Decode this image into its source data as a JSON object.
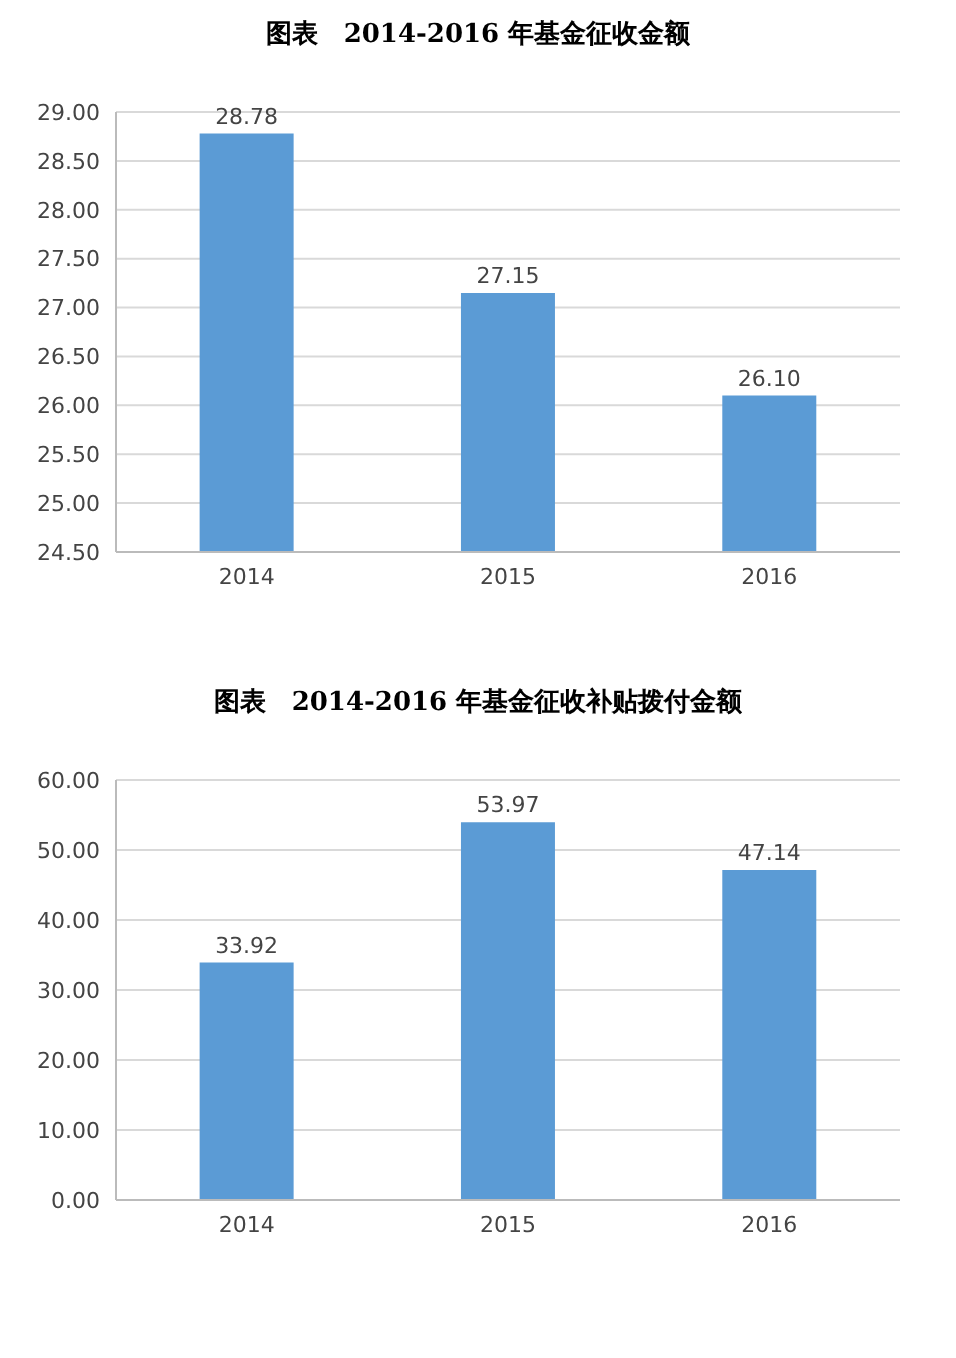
{
  "chart_data": [
    {
      "type": "bar",
      "title": "图表　2014-2016 年基金征收金额",
      "categories": [
        "2014",
        "2015",
        "2016"
      ],
      "values": [
        28.78,
        27.15,
        26.1
      ],
      "value_labels": [
        "28.78",
        "27.15",
        "26.10"
      ],
      "color": "#5b9bd5",
      "ylim": [
        24.5,
        29
      ],
      "yticks": [
        {
          "value": 24.5,
          "label": "24.50"
        },
        {
          "value": 25,
          "label": "25.00"
        },
        {
          "value": 25.5,
          "label": "25.50"
        },
        {
          "value": 26,
          "label": "26.00"
        },
        {
          "value": 26.5,
          "label": "26.50"
        },
        {
          "value": 27,
          "label": "27.00"
        },
        {
          "value": 27.5,
          "label": "27.50"
        },
        {
          "value": 28,
          "label": "28.00"
        },
        {
          "value": 28.5,
          "label": "28.50"
        },
        {
          "value": 29,
          "label": "29.00"
        }
      ],
      "grid": "y"
    },
    {
      "type": "bar",
      "title": "图表　2014-2016 年基金征收补贴拨付金额",
      "categories": [
        "2014",
        "2015",
        "2016"
      ],
      "values": [
        33.92,
        53.97,
        47.14
      ],
      "value_labels": [
        "33.92",
        "53.97",
        "47.14"
      ],
      "color": "#5b9bd5",
      "ylim": [
        0,
        60
      ],
      "yticks": [
        {
          "value": 0,
          "label": "0.00"
        },
        {
          "value": 10,
          "label": "10.00"
        },
        {
          "value": 20,
          "label": "20.00"
        },
        {
          "value": 30,
          "label": "30.00"
        },
        {
          "value": 40,
          "label": "40.00"
        },
        {
          "value": 50,
          "label": "50.00"
        },
        {
          "value": 60,
          "label": "60.00"
        }
      ],
      "grid": "y"
    }
  ]
}
